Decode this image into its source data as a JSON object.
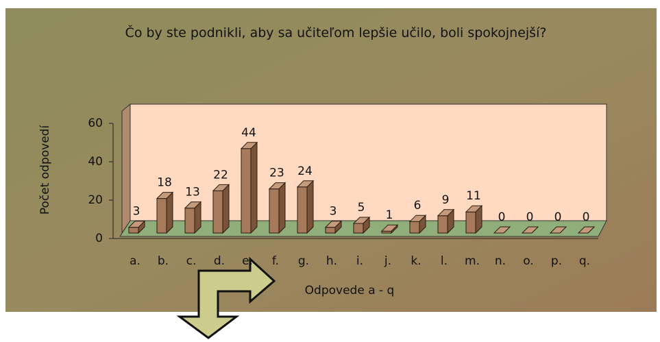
{
  "chart_data": {
    "type": "bar",
    "title": "Čo by ste podnikli, aby sa učiteľom lepšie učilo, boli spokojnejší?",
    "y_label": "Počet odpovedí",
    "x_label": "Odpovede a - q",
    "categories": [
      "a.",
      "b.",
      "c.",
      "d.",
      "e.",
      "f.",
      "g.",
      "h.",
      "i.",
      "j.",
      "k.",
      "l.",
      "m.",
      "n.",
      "o.",
      "p.",
      "q."
    ],
    "values": [
      3,
      18,
      13,
      22,
      44,
      23,
      24,
      3,
      5,
      1,
      6,
      9,
      11,
      0,
      0,
      0,
      0
    ],
    "color": "#a87a5c",
    "ylim": [
      0,
      60
    ],
    "yticks": [
      0,
      20,
      40,
      60
    ]
  }
}
